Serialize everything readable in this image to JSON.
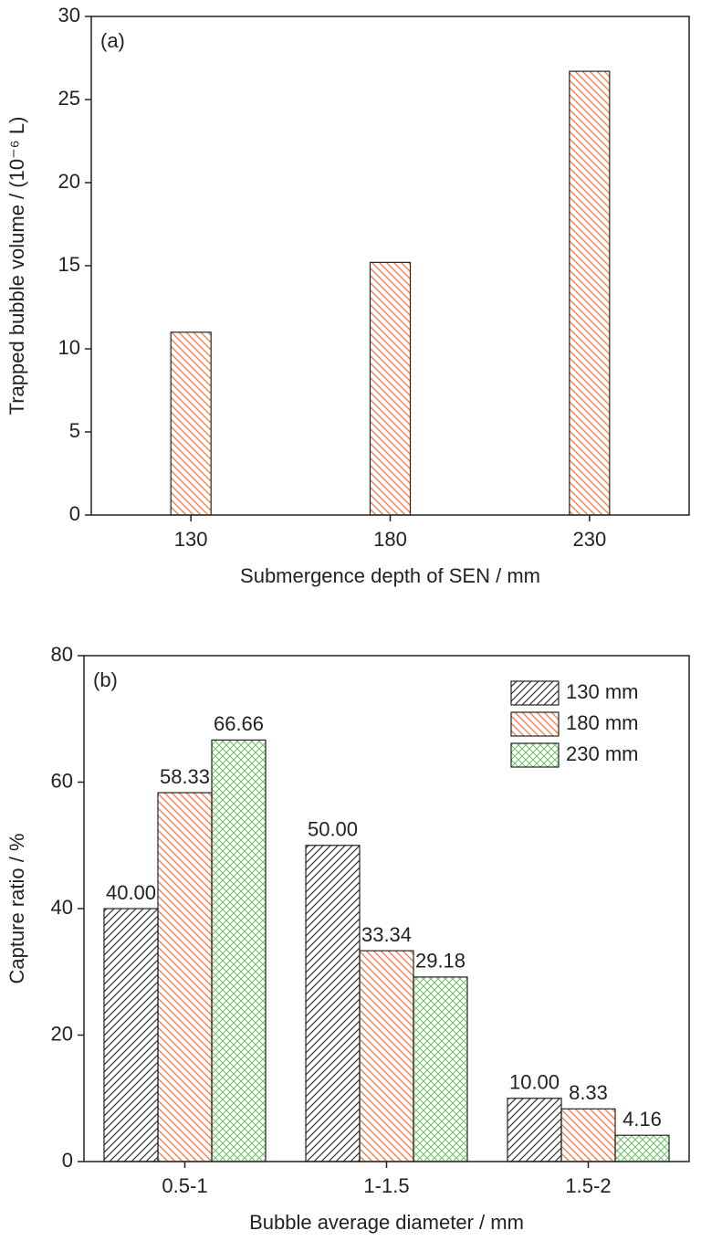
{
  "chart_data": [
    {
      "type": "bar",
      "panel_label": "(a)",
      "x_label": "Submergence depth of SEN / mm",
      "y_label": "Trapped bubble volume / (10⁻⁶ L)",
      "categories": [
        "130",
        "180",
        "230"
      ],
      "values": [
        11,
        15.2,
        26.7
      ],
      "color": "#e8743b",
      "hatch": "\\",
      "ylim": [
        0,
        30
      ],
      "yticks": [
        0,
        5,
        10,
        15,
        20,
        25,
        30
      ]
    },
    {
      "type": "grouped_bar",
      "panel_label": "(b)",
      "x_label": "Bubble average diameter / mm",
      "y_label": "Capture ratio / %",
      "categories": [
        "0.5-1",
        "1-1.5",
        "1.5-2"
      ],
      "series": [
        {
          "name": "130 mm",
          "color": "#333333",
          "hatch": "/",
          "values": [
            40,
            50,
            10
          ],
          "value_labels": [
            "40.00",
            "50.00",
            "10.00"
          ]
        },
        {
          "name": "180 mm",
          "color": "#e8743b",
          "hatch": "\\",
          "values": [
            58.33,
            33.34,
            8.33
          ],
          "value_labels": [
            "58.33",
            "33.34",
            "8.33"
          ]
        },
        {
          "name": "230 mm",
          "color": "#7cc576",
          "hatch": "x",
          "values": [
            66.66,
            29.18,
            4.16
          ],
          "value_labels": [
            "66.66",
            "29.18",
            "4.16"
          ]
        }
      ],
      "legend": "upper right",
      "ylim": [
        0,
        80
      ],
      "yticks": [
        0,
        20,
        40,
        60,
        80
      ]
    }
  ]
}
